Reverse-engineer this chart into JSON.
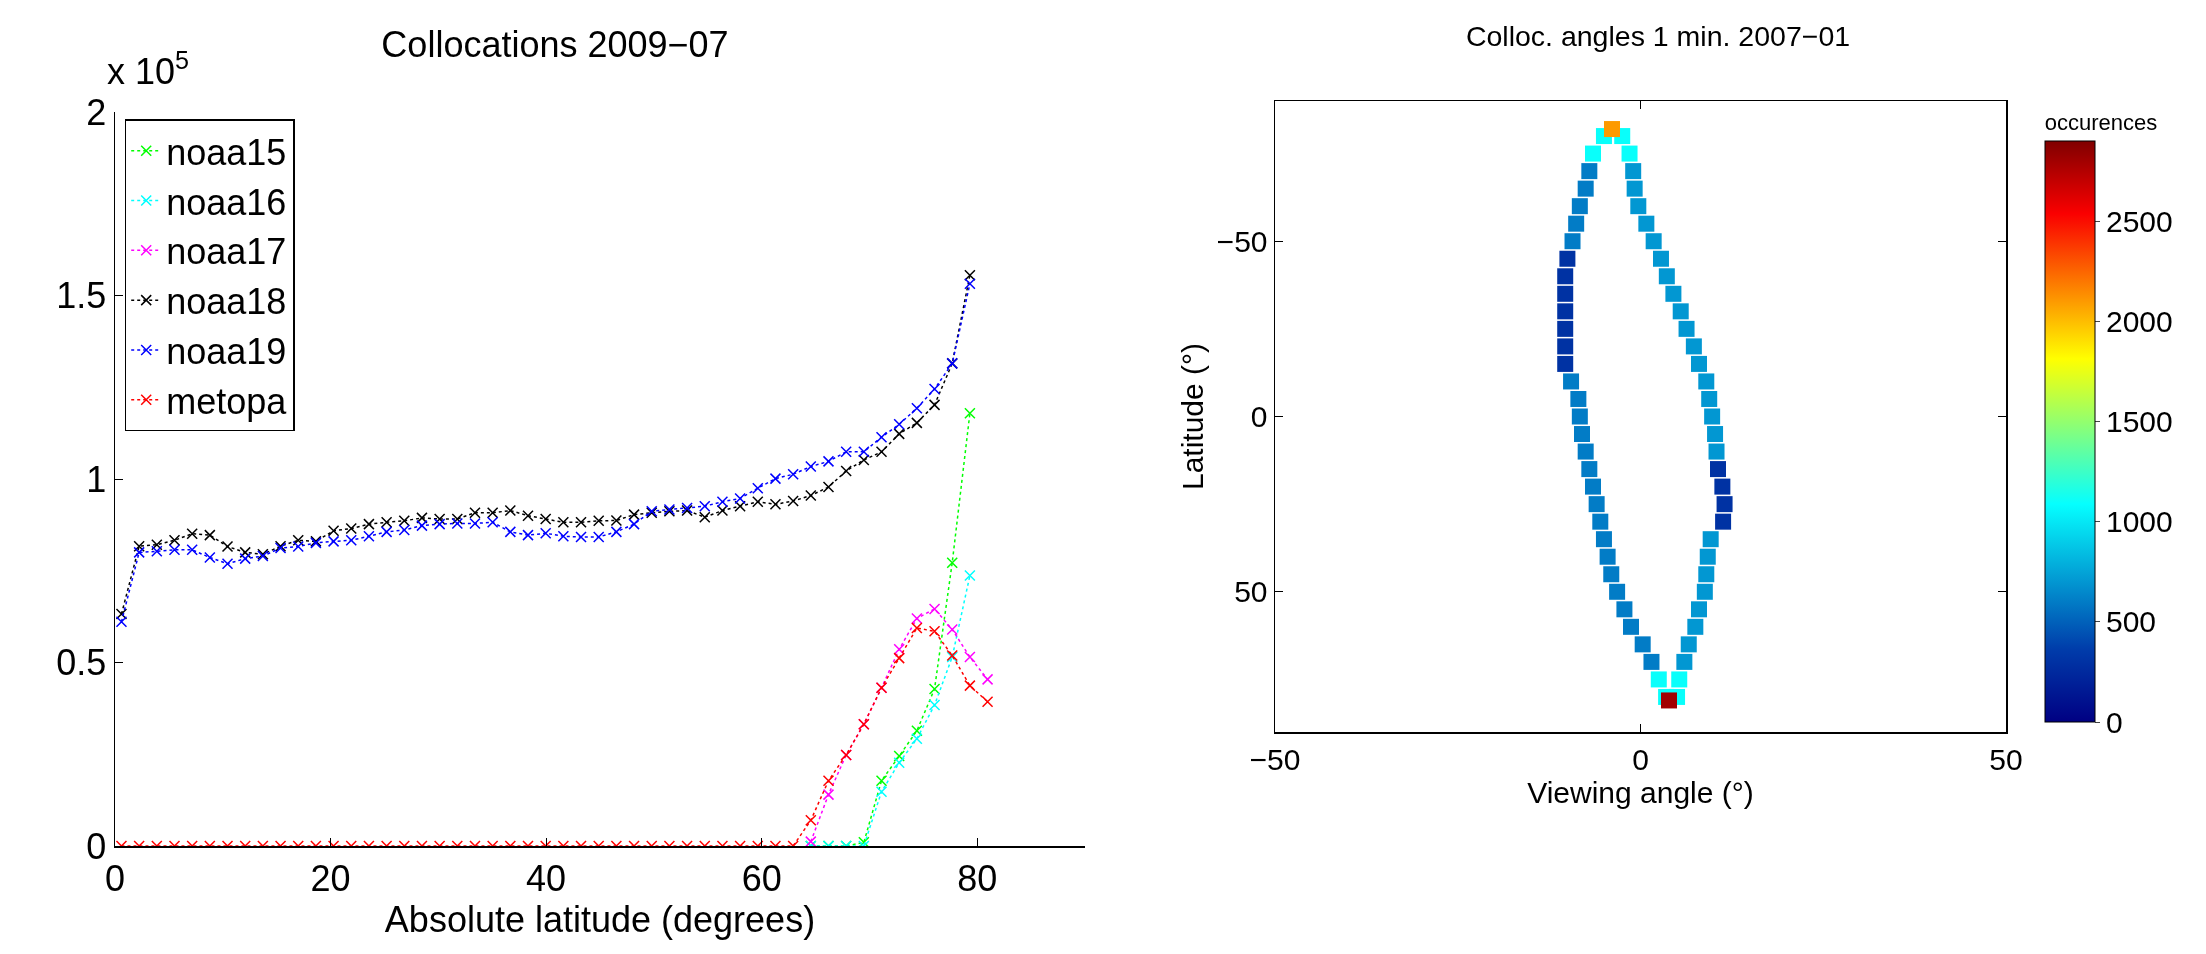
{
  "chart_data": [
    {
      "type": "line",
      "title": "Collocations 2009−07",
      "xlabel": "Absolute latitude (degrees)",
      "annotations": [
        "x 10$^{5}$"
      ],
      "xlim": [
        0,
        90
      ],
      "xticks": [
        0,
        20,
        40,
        60,
        80
      ],
      "ylim": [
        0,
        2
      ],
      "yticks": [
        0,
        0.5,
        1,
        1.5,
        2
      ],
      "legend": "top left",
      "marker": "cross",
      "line_style": "dotted",
      "x": [
        0.6,
        2.24,
        3.88,
        5.52,
        7.16,
        8.8,
        10.44,
        12.08,
        13.72,
        15.36,
        17,
        18.64,
        20.28,
        21.92,
        23.56,
        25.2,
        26.84,
        28.48,
        30.12,
        31.76,
        33.4,
        35.04,
        36.68,
        38.32,
        39.96,
        41.6,
        43.24,
        44.88,
        46.52,
        48.16,
        49.8,
        51.44,
        53.08,
        54.72,
        56.36,
        58,
        59.64,
        61.28,
        62.92,
        64.56,
        66.2,
        67.84,
        69.48,
        71.12,
        72.76,
        74.4,
        76.04,
        77.68,
        79.32,
        80.96
      ],
      "series": [
        {
          "name": "noaa15",
          "color": "#00ff00",
          "values": [
            null,
            null,
            null,
            null,
            null,
            null,
            null,
            null,
            null,
            null,
            null,
            null,
            null,
            null,
            null,
            null,
            null,
            null,
            null,
            null,
            null,
            null,
            null,
            null,
            null,
            null,
            null,
            null,
            null,
            null,
            null,
            null,
            null,
            null,
            null,
            null,
            null,
            null,
            null,
            0,
            0,
            0,
            0.01,
            0.178,
            0.245,
            0.314,
            0.428,
            0.772,
            1.179,
            null
          ]
        },
        {
          "name": "noaa16",
          "color": "#00ffff",
          "values": [
            null,
            null,
            null,
            null,
            null,
            null,
            null,
            null,
            null,
            null,
            null,
            null,
            null,
            null,
            null,
            null,
            null,
            null,
            null,
            null,
            null,
            null,
            null,
            null,
            null,
            null,
            null,
            null,
            null,
            null,
            null,
            null,
            null,
            null,
            null,
            null,
            null,
            null,
            null,
            0,
            0,
            0,
            0,
            0.148,
            0.227,
            0.292,
            0.384,
            0.515,
            0.737,
            null
          ]
        },
        {
          "name": "noaa17",
          "color": "#ff00ff",
          "values": [
            null,
            null,
            null,
            null,
            null,
            null,
            null,
            null,
            null,
            null,
            null,
            null,
            null,
            null,
            null,
            null,
            null,
            null,
            null,
            null,
            null,
            null,
            null,
            null,
            null,
            null,
            null,
            null,
            null,
            null,
            null,
            null,
            null,
            null,
            null,
            null,
            null,
            null,
            null,
            0.012,
            0.14,
            0.248,
            0.332,
            0.431,
            0.536,
            0.62,
            0.646,
            0.59,
            0.515,
            0.454
          ]
        },
        {
          "name": "noaa18",
          "color": "#000000",
          "values": [
            0.632,
            0.817,
            0.821,
            0.833,
            0.851,
            0.847,
            0.816,
            0.8,
            0.795,
            0.817,
            0.833,
            0.83,
            0.859,
            0.865,
            0.877,
            0.882,
            0.886,
            0.894,
            0.891,
            0.891,
            0.908,
            0.908,
            0.914,
            0.9,
            0.891,
            0.882,
            0.882,
            0.886,
            0.887,
            0.903,
            0.908,
            0.912,
            0.914,
            0.896,
            0.914,
            0.926,
            0.938,
            0.931,
            0.94,
            0.955,
            0.978,
            1.022,
            1.052,
            1.074,
            1.123,
            1.153,
            1.202,
            1.315,
            1.555,
            null
          ]
        },
        {
          "name": "noaa19",
          "color": "#0000ff",
          "values": [
            0.611,
            0.8,
            0.803,
            0.807,
            0.807,
            0.786,
            0.769,
            0.783,
            0.79,
            0.812,
            0.816,
            0.826,
            0.83,
            0.833,
            0.844,
            0.856,
            0.861,
            0.873,
            0.877,
            0.879,
            0.879,
            0.882,
            0.856,
            0.847,
            0.852,
            0.844,
            0.842,
            0.842,
            0.856,
            0.877,
            0.912,
            0.917,
            0.921,
            0.926,
            0.938,
            0.947,
            0.975,
            1.001,
            1.013,
            1.034,
            1.048,
            1.074,
            1.074,
            1.114,
            1.149,
            1.193,
            1.245,
            1.315,
            1.532,
            null
          ]
        },
        {
          "name": "metopa",
          "color": "#ff0000",
          "values": [
            0,
            0,
            0,
            0,
            0,
            0,
            0,
            0,
            0,
            0,
            0,
            0,
            0,
            0,
            0,
            0,
            0,
            0,
            0,
            0,
            0,
            0,
            0,
            0,
            0,
            0,
            0,
            0,
            0,
            0,
            0,
            0,
            0,
            0,
            0,
            0,
            0,
            0,
            0,
            0.07,
            0.178,
            0.248,
            0.332,
            0.431,
            0.512,
            0.594,
            0.585,
            0.519,
            0.437,
            0.393
          ]
        }
      ]
    },
    {
      "type": "scatter",
      "title": "Colloc. angles 1 min. 2007−01",
      "xlabel": "Viewing angle (°)",
      "ylabel": "Latitude (°)",
      "clabel": "occurences",
      "xlim": [
        -50,
        50
      ],
      "xticks": [
        -50,
        0,
        50
      ],
      "ylim": [
        90,
        -90
      ],
      "yticks": [
        -50,
        0,
        50
      ],
      "clim": [
        0,
        2900
      ],
      "cticks": [
        0,
        500,
        1000,
        1500,
        2000,
        2500
      ],
      "marker": "square",
      "series": [
        {
          "x": [
            -5,
            -6.5,
            -7,
            -7.5,
            -8.3,
            -8.8,
            -9.3,
            -10,
            -10.3,
            -10.3,
            -10.3,
            -10.3,
            -10.3,
            -10.3,
            -9.5,
            -8.5,
            -8.3,
            -8,
            -7.5,
            -7,
            -6.5,
            -6,
            -5.5,
            -5,
            -4.5,
            -4,
            -3.2,
            -2.2,
            -1.3,
            0.3,
            1.5,
            2.5,
            3.5,
            -2.5,
            -1.5,
            -1,
            -0.8,
            -0.3,
            0.8,
            1.8,
            2.8,
            3.6,
            4.5,
            5.5,
            6.3,
            7.3,
            8,
            9,
            9.4,
            9.8,
            10.2,
            10.4,
            10.6,
            11.2,
            11.5,
            11.3,
            9.6,
            9.2,
            9,
            8.8,
            8,
            7.5,
            6.6,
            6,
            5.3,
            5,
            -3.9,
            3.9
          ],
          "values": [
            -80,
            -75,
            -70,
            -65,
            -60,
            -55,
            -50,
            -45,
            -40,
            -35,
            -30,
            -25,
            -20,
            -15,
            -10,
            -5,
            0,
            5,
            10,
            15,
            20,
            25,
            30,
            35,
            40,
            45,
            50,
            55,
            60,
            65,
            70,
            75,
            80,
            -80,
            -75,
            -70,
            -65,
            -60,
            -55,
            -50,
            -45,
            -40,
            -35,
            -30,
            -25,
            -20,
            -15,
            -10,
            -5,
            0,
            5,
            10,
            15,
            20,
            25,
            30,
            35,
            40,
            45,
            50,
            55,
            60,
            65,
            70,
            75,
            80,
            -82,
            81
          ],
          "cvalues": [
            1100,
            1100,
            600,
            600,
            600,
            600,
            600,
            300,
            300,
            300,
            300,
            300,
            300,
            300,
            600,
            600,
            600,
            600,
            600,
            600,
            600,
            600,
            600,
            600,
            600,
            600,
            600,
            600,
            600,
            600,
            600,
            1100,
            1100,
            1100,
            1100,
            700,
            700,
            700,
            700,
            700,
            700,
            700,
            700,
            700,
            700,
            700,
            700,
            700,
            700,
            700,
            700,
            700,
            300,
            300,
            300,
            300,
            700,
            700,
            700,
            700,
            700,
            700,
            700,
            700,
            1100,
            1100,
            2100,
            2800
          ]
        }
      ]
    }
  ]
}
